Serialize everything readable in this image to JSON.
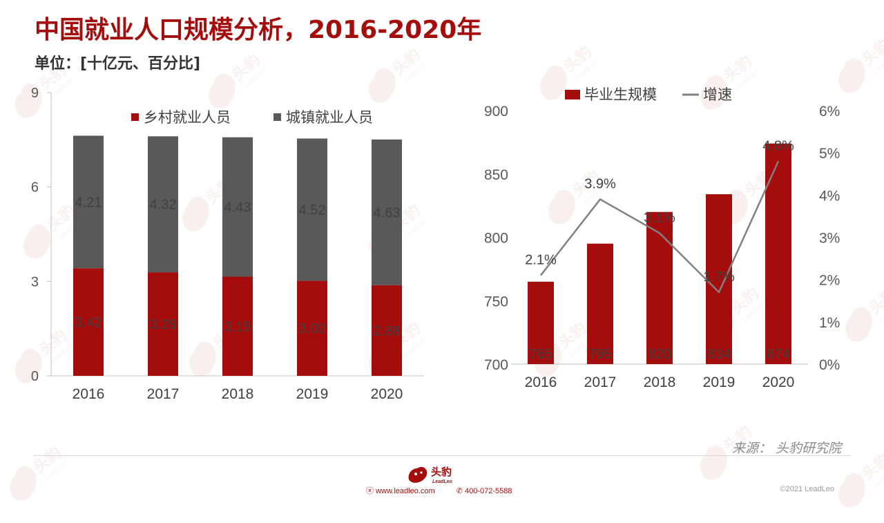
{
  "title": "中国就业人口规模分析，2016-2020年",
  "unit": "单位：[十亿元、百分比]",
  "source": "来源：  头豹研究院",
  "footer": {
    "logo_text": "头豹",
    "logo_sub": "LeadLeo",
    "website": "www.leadleo.com",
    "phone": "400-072-5588",
    "copyright": "©2021 LeadLeo"
  },
  "watermark": {
    "text": "头豹",
    "sub": "LeadLeo"
  },
  "colors": {
    "brand": "#a50d0d",
    "dark_gray": "#595959",
    "line_gray": "#808080",
    "axis": "#bfbfbf"
  },
  "chart_data": [
    {
      "type": "bar",
      "stacked": true,
      "categories": [
        "2016",
        "2017",
        "2018",
        "2019",
        "2020"
      ],
      "series": [
        {
          "name": "乡村就业人员",
          "values": [
            3.42,
            3.29,
            3.15,
            3.02,
            2.88
          ],
          "color": "#a50d0d",
          "labels": [
            "3.42",
            "3.29",
            "3.15",
            "3.02",
            "2.88"
          ]
        },
        {
          "name": "城镇就业人员",
          "values": [
            4.21,
            4.32,
            4.43,
            4.52,
            4.63
          ],
          "color": "#595959",
          "labels": [
            "4.21",
            "4.32",
            "4.43",
            "4.52",
            "4.63"
          ]
        }
      ],
      "ylim": [
        0,
        9
      ],
      "yticks": [
        "0",
        "3",
        "6",
        "9"
      ],
      "legend_position": "top"
    },
    {
      "type": "bar+line",
      "categories": [
        "2016",
        "2017",
        "2018",
        "2019",
        "2020"
      ],
      "series": [
        {
          "name": "毕业生规模",
          "type": "bar",
          "axis": "left",
          "values": [
            765,
            795,
            820,
            834,
            874
          ],
          "labels": [
            "765",
            "795",
            "820",
            "834",
            "874"
          ],
          "color": "#a50d0d"
        },
        {
          "name": "增速",
          "type": "line",
          "axis": "right",
          "values": [
            2.1,
            3.9,
            3.1,
            1.7,
            4.8
          ],
          "labels": [
            "2.1%",
            "3.9%",
            "3.1%",
            "1.7%",
            "4.8%"
          ],
          "color": "#808080"
        }
      ],
      "ylim_left": [
        700,
        900
      ],
      "yticks_left": [
        "700",
        "750",
        "800",
        "850",
        "900"
      ],
      "ylim_right": [
        0,
        6
      ],
      "yticks_right": [
        "0%",
        "1%",
        "2%",
        "3%",
        "4%",
        "5%",
        "6%"
      ],
      "legend_position": "top"
    }
  ]
}
